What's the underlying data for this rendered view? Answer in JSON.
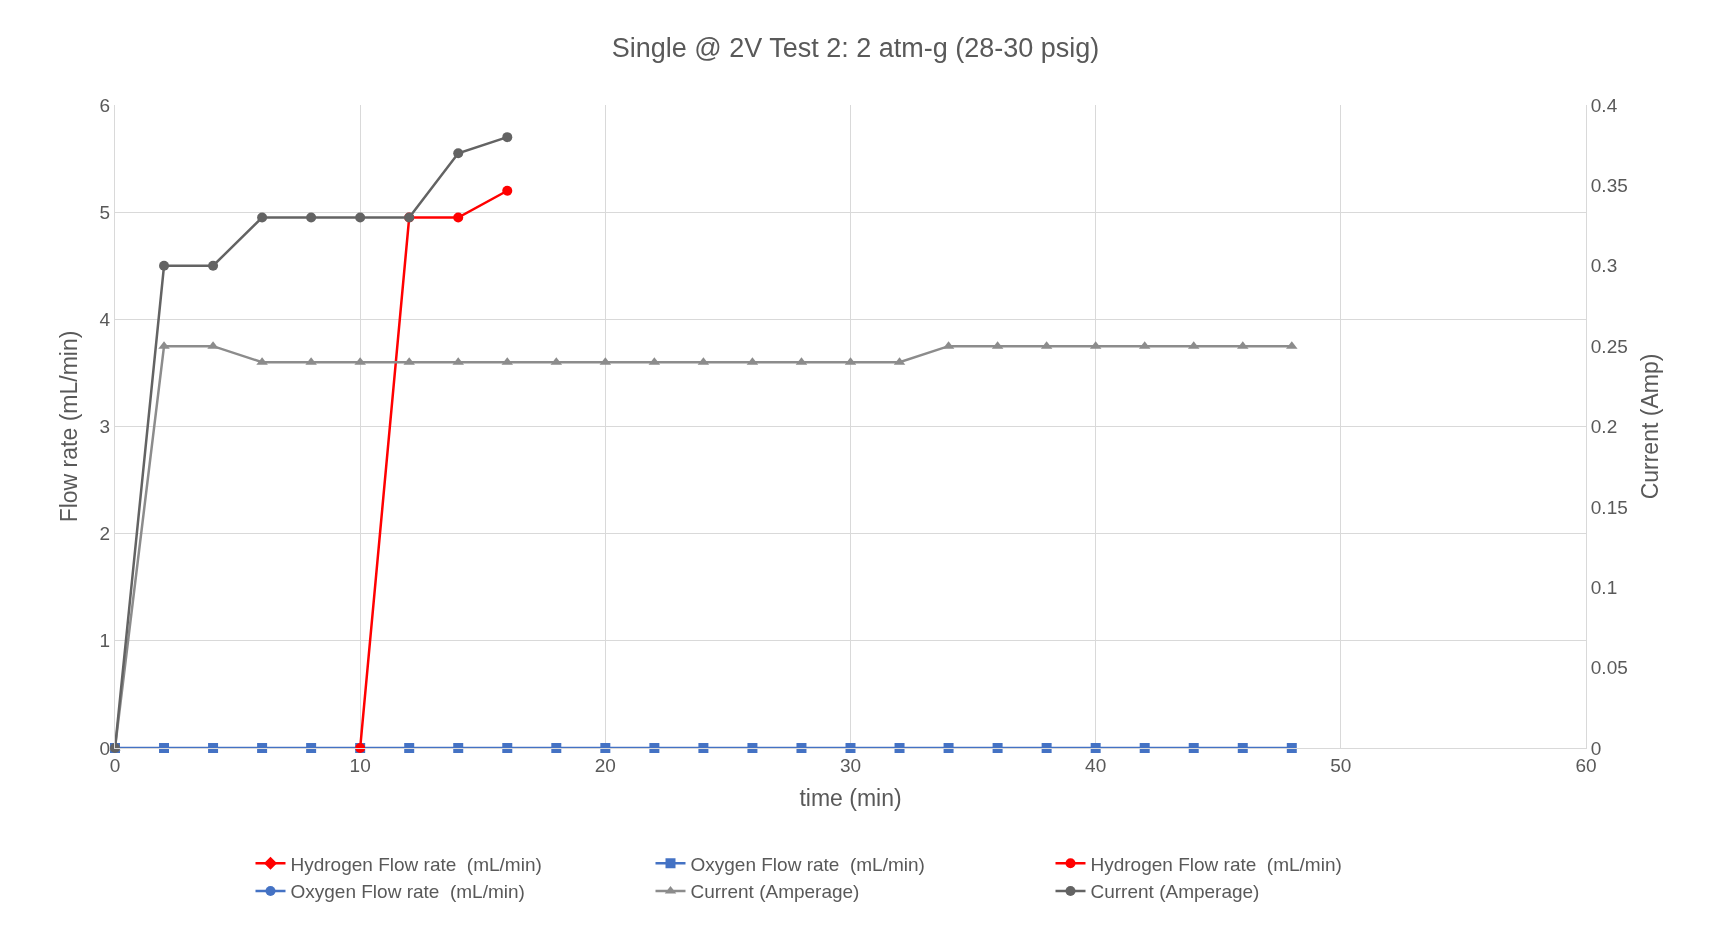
{
  "chart_data": {
    "type": "line",
    "title": "Single @ 2V Test 2: 2 atm-g (28-30 psig)",
    "xlabel": "time (min)",
    "ylabel": "Flow rate (mL/min)",
    "y2label": "Current (Amp)",
    "xlim": [
      0,
      60
    ],
    "xticks": [
      0,
      10,
      20,
      30,
      40,
      50,
      60
    ],
    "ylim": [
      0,
      6
    ],
    "yticks": [
      0,
      1,
      2,
      3,
      4,
      5,
      6
    ],
    "y2lim": [
      0,
      0.4
    ],
    "y2ticks": [
      0,
      0.05,
      0.1,
      0.15,
      0.2,
      0.25,
      0.3,
      0.35,
      0.4
    ],
    "grid": true,
    "legend": "bottom",
    "series": [
      {
        "name": "Hydrogen Flow rate  (mL/min)",
        "color": "#ff0000",
        "marker": "diamond"
      },
      {
        "name": "Oxygen Flow rate  (mL/min)",
        "color": "#4472c4",
        "marker": "square",
        "x": [
          0,
          2,
          4,
          6,
          8,
          10,
          12,
          14,
          16,
          18,
          20,
          22,
          24,
          26,
          28,
          30,
          32,
          34,
          36,
          38,
          40,
          42,
          44,
          46,
          48
        ],
        "values": [
          0,
          0,
          0,
          0,
          0,
          0,
          0,
          0,
          0,
          0,
          0,
          0,
          0,
          0,
          0,
          0,
          0,
          0,
          0,
          0,
          0,
          0,
          0,
          0,
          0
        ]
      },
      {
        "name": "Hydrogen Flow rate  (mL/min)",
        "color": "#ff0000",
        "marker": "circle",
        "x": [
          10,
          12,
          14,
          16
        ],
        "values": [
          0,
          4.95,
          4.95,
          5.2
        ]
      },
      {
        "name": "Oxygen Flow rate  (mL/min)",
        "color": "#4472c4",
        "marker": "circle"
      },
      {
        "name": "Current (Amperage)",
        "color": "#8c8c8c",
        "marker": "triangle",
        "axis": "y2",
        "x": [
          0,
          2,
          4,
          6,
          8,
          10,
          12,
          14,
          16,
          18,
          20,
          22,
          24,
          26,
          28,
          30,
          32,
          34,
          36,
          38,
          40,
          42,
          44,
          46,
          48
        ],
        "values": [
          0,
          0.25,
          0.25,
          0.24,
          0.24,
          0.24,
          0.24,
          0.24,
          0.24,
          0.24,
          0.24,
          0.24,
          0.24,
          0.24,
          0.24,
          0.24,
          0.24,
          0.25,
          0.25,
          0.25,
          0.25,
          0.25,
          0.25,
          0.25,
          0.25
        ]
      },
      {
        "name": "Current (Amperage)",
        "color": "#636363",
        "marker": "circle",
        "axis": "y2",
        "x": [
          0,
          2,
          4,
          6,
          8,
          10,
          12,
          14,
          16
        ],
        "values": [
          0,
          0.3,
          0.3,
          0.33,
          0.33,
          0.33,
          0.33,
          0.37,
          0.38
        ]
      }
    ]
  }
}
